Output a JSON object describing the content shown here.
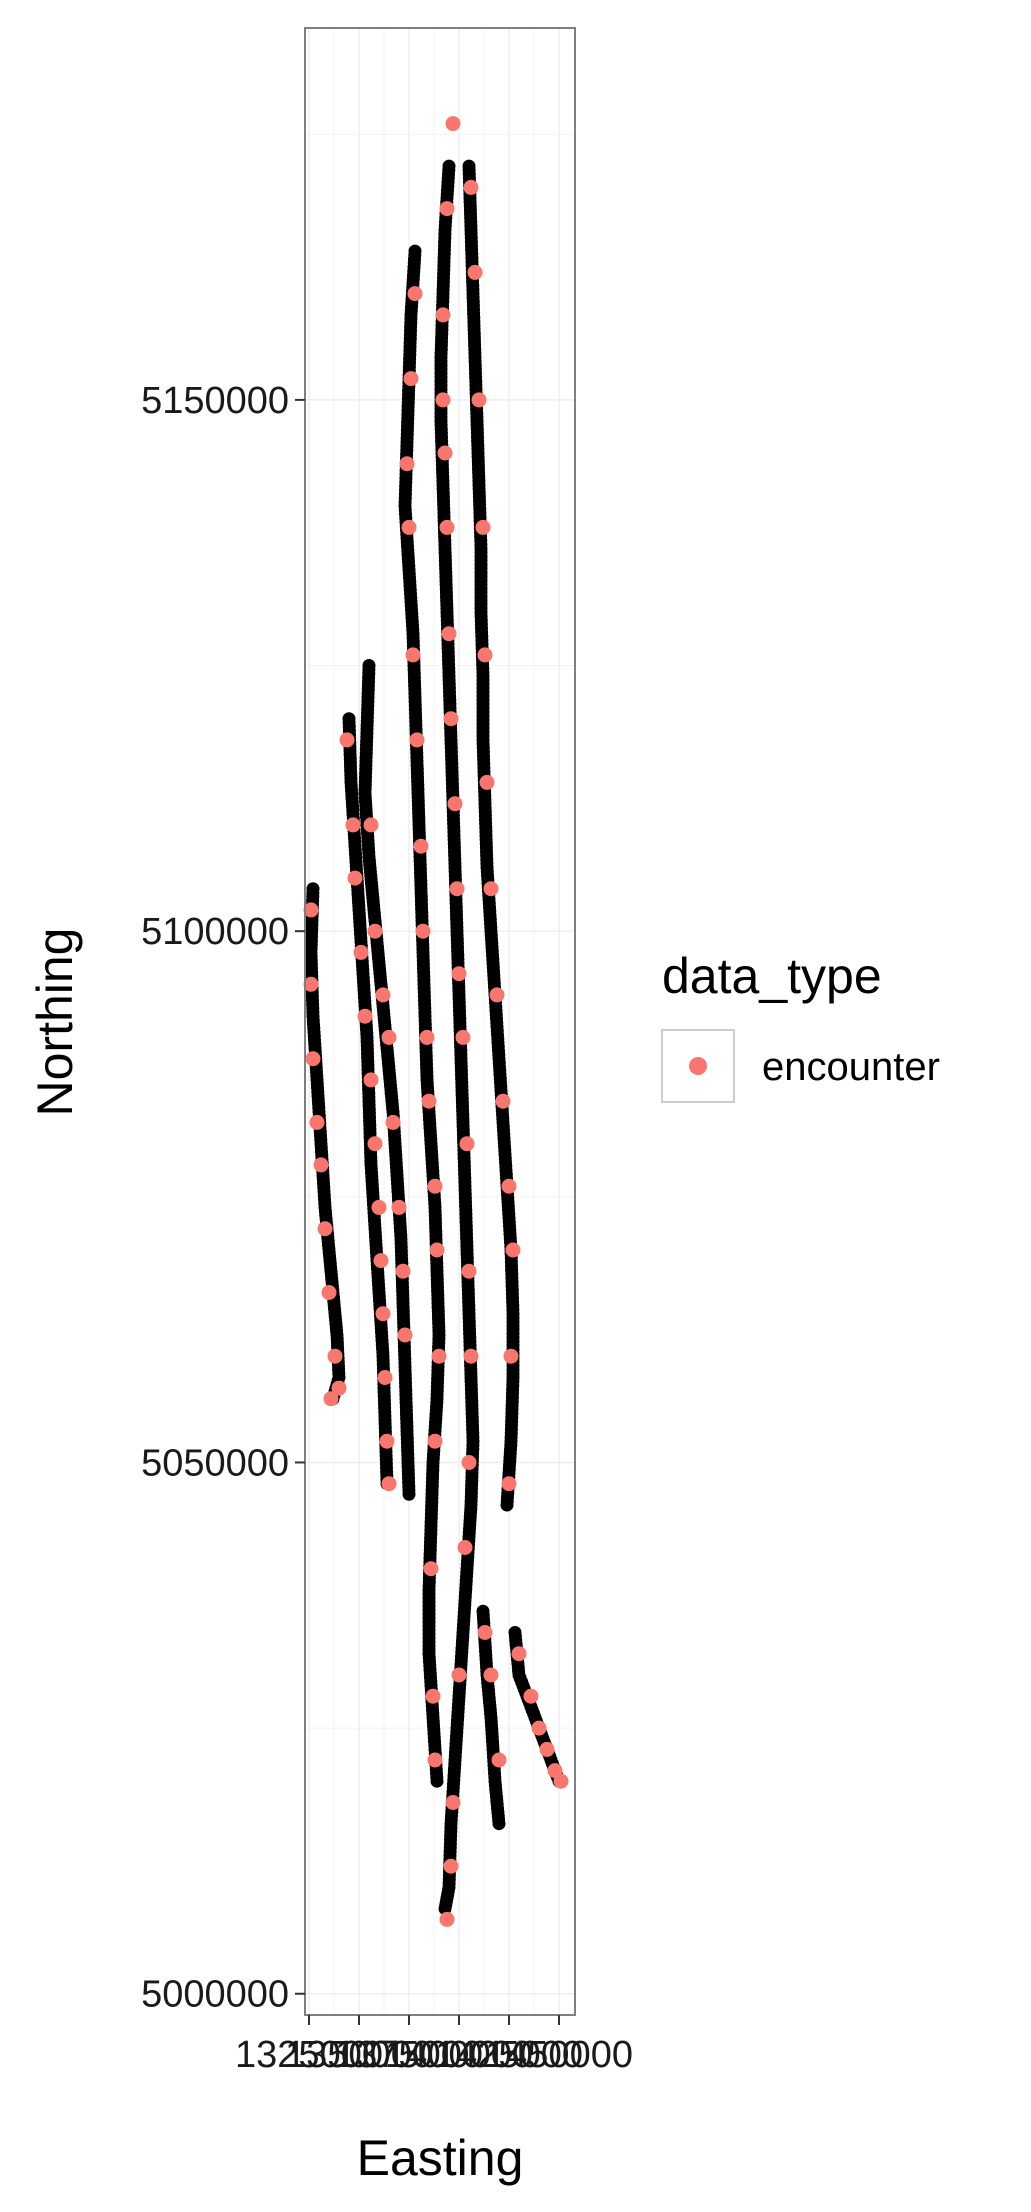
{
  "chart_data": {
    "type": "scatter",
    "xlabel": "Easting",
    "ylabel": "Northing",
    "x_ticks": [
      "1325000",
      "1350000",
      "1375000",
      "1400000",
      "1425000",
      "1450000"
    ],
    "y_ticks": [
      "5000000",
      "5050000",
      "5100000",
      "5150000"
    ],
    "xlim": [
      1323000,
      1458000
    ],
    "ylim": [
      4998000,
      5185000
    ],
    "grid": true,
    "legend": {
      "title": "data_type",
      "position": "right",
      "entries": [
        {
          "name": "encounter",
          "color": "#F8766D"
        }
      ]
    },
    "colors": {
      "encounter": "#F8766D",
      "track": "#000000",
      "panel_border": "#7f7f7f",
      "grid": "#ebebeb"
    },
    "series": [
      {
        "name": "track",
        "points": [
          [
            1327000,
            5104000
          ],
          [
            1326000,
            5098000
          ],
          [
            1327000,
            5092000
          ],
          [
            1329000,
            5086000
          ],
          [
            1331000,
            5080000
          ],
          [
            1333000,
            5074000
          ],
          [
            1336000,
            5068000
          ],
          [
            1339000,
            5062000
          ],
          [
            1340000,
            5058000
          ],
          [
            1337000,
            5056000
          ],
          [
            1345000,
            5120000
          ],
          [
            1346000,
            5114000
          ],
          [
            1348000,
            5108000
          ],
          [
            1350000,
            5102000
          ],
          [
            1352000,
            5096000
          ],
          [
            1354000,
            5090000
          ],
          [
            1355000,
            5084000
          ],
          [
            1356000,
            5078000
          ],
          [
            1358000,
            5072000
          ],
          [
            1360000,
            5066000
          ],
          [
            1362000,
            5060000
          ],
          [
            1363000,
            5054000
          ],
          [
            1364000,
            5048000
          ],
          [
            1355000,
            5125000
          ],
          [
            1354000,
            5119000
          ],
          [
            1353000,
            5113000
          ],
          [
            1355000,
            5107000
          ],
          [
            1358000,
            5101000
          ],
          [
            1361000,
            5095000
          ],
          [
            1364000,
            5089000
          ],
          [
            1367000,
            5083000
          ],
          [
            1369000,
            5077000
          ],
          [
            1371000,
            5071000
          ],
          [
            1372000,
            5065000
          ],
          [
            1373000,
            5059000
          ],
          [
            1374000,
            5053000
          ],
          [
            1375000,
            5047000
          ],
          [
            1378000,
            5164000
          ],
          [
            1376000,
            5158000
          ],
          [
            1375000,
            5152000
          ],
          [
            1374000,
            5146000
          ],
          [
            1373000,
            5140000
          ],
          [
            1375000,
            5134000
          ],
          [
            1377000,
            5128000
          ],
          [
            1378000,
            5122000
          ],
          [
            1379000,
            5116000
          ],
          [
            1380000,
            5110000
          ],
          [
            1381000,
            5104000
          ],
          [
            1382000,
            5098000
          ],
          [
            1383000,
            5092000
          ],
          [
            1384000,
            5086000
          ],
          [
            1386000,
            5080000
          ],
          [
            1388000,
            5074000
          ],
          [
            1389000,
            5068000
          ],
          [
            1390000,
            5062000
          ],
          [
            1389000,
            5056000
          ],
          [
            1387000,
            5050000
          ],
          [
            1386000,
            5044000
          ],
          [
            1385000,
            5038000
          ],
          [
            1385000,
            5032000
          ],
          [
            1387000,
            5026000
          ],
          [
            1389000,
            5020000
          ],
          [
            1395000,
            5172000
          ],
          [
            1393000,
            5166000
          ],
          [
            1392000,
            5160000
          ],
          [
            1391000,
            5154000
          ],
          [
            1391000,
            5148000
          ],
          [
            1392000,
            5142000
          ],
          [
            1393000,
            5136000
          ],
          [
            1394000,
            5130000
          ],
          [
            1395000,
            5124000
          ],
          [
            1396000,
            5118000
          ],
          [
            1397000,
            5112000
          ],
          [
            1398000,
            5106000
          ],
          [
            1399000,
            5100000
          ],
          [
            1400000,
            5094000
          ],
          [
            1401000,
            5088000
          ],
          [
            1402000,
            5082000
          ],
          [
            1403000,
            5076000
          ],
          [
            1404000,
            5070000
          ],
          [
            1405000,
            5064000
          ],
          [
            1406000,
            5058000
          ],
          [
            1407000,
            5052000
          ],
          [
            1406000,
            5046000
          ],
          [
            1404000,
            5040000
          ],
          [
            1402000,
            5034000
          ],
          [
            1400000,
            5028000
          ],
          [
            1398000,
            5022000
          ],
          [
            1396000,
            5016000
          ],
          [
            1395000,
            5010000
          ],
          [
            1393000,
            5008000
          ],
          [
            1405000,
            5172000
          ],
          [
            1406000,
            5166000
          ],
          [
            1407000,
            5160000
          ],
          [
            1408000,
            5154000
          ],
          [
            1409000,
            5148000
          ],
          [
            1410000,
            5142000
          ],
          [
            1411000,
            5136000
          ],
          [
            1411000,
            5130000
          ],
          [
            1412000,
            5124000
          ],
          [
            1412000,
            5118000
          ],
          [
            1413000,
            5112000
          ],
          [
            1414000,
            5106000
          ],
          [
            1416000,
            5100000
          ],
          [
            1418000,
            5094000
          ],
          [
            1420000,
            5088000
          ],
          [
            1422000,
            5082000
          ],
          [
            1424000,
            5076000
          ],
          [
            1426000,
            5070000
          ],
          [
            1427000,
            5064000
          ],
          [
            1427000,
            5058000
          ],
          [
            1426000,
            5052000
          ],
          [
            1424000,
            5046000
          ],
          [
            1412000,
            5036000
          ],
          [
            1414000,
            5030000
          ],
          [
            1416000,
            5026000
          ],
          [
            1418000,
            5020000
          ],
          [
            1420000,
            5016000
          ],
          [
            1428000,
            5034000
          ],
          [
            1430000,
            5030000
          ],
          [
            1434000,
            5028000
          ],
          [
            1438000,
            5026000
          ],
          [
            1442000,
            5024000
          ],
          [
            1446000,
            5022000
          ],
          [
            1450000,
            5020000
          ]
        ]
      },
      {
        "name": "encounter",
        "points": [
          [
            1326000,
            5102000
          ],
          [
            1326000,
            5095000
          ],
          [
            1327000,
            5088000
          ],
          [
            1329000,
            5082000
          ],
          [
            1331000,
            5078000
          ],
          [
            1333000,
            5072000
          ],
          [
            1335000,
            5066000
          ],
          [
            1338000,
            5060000
          ],
          [
            1340000,
            5057000
          ],
          [
            1336000,
            5056000
          ],
          [
            1344000,
            5118000
          ],
          [
            1347000,
            5110000
          ],
          [
            1348000,
            5105000
          ],
          [
            1351000,
            5098000
          ],
          [
            1353000,
            5092000
          ],
          [
            1356000,
            5086000
          ],
          [
            1358000,
            5080000
          ],
          [
            1360000,
            5074000
          ],
          [
            1361000,
            5069000
          ],
          [
            1362000,
            5064000
          ],
          [
            1363000,
            5058000
          ],
          [
            1364000,
            5052000
          ],
          [
            1365000,
            5048000
          ],
          [
            1356000,
            5110000
          ],
          [
            1358000,
            5100000
          ],
          [
            1362000,
            5094000
          ],
          [
            1365000,
            5090000
          ],
          [
            1367000,
            5082000
          ],
          [
            1370000,
            5074000
          ],
          [
            1372000,
            5068000
          ],
          [
            1373000,
            5062000
          ],
          [
            1378000,
            5160000
          ],
          [
            1376000,
            5152000
          ],
          [
            1374000,
            5144000
          ],
          [
            1375000,
            5138000
          ],
          [
            1377000,
            5126000
          ],
          [
            1379000,
            5118000
          ],
          [
            1381000,
            5108000
          ],
          [
            1382000,
            5100000
          ],
          [
            1384000,
            5090000
          ],
          [
            1385000,
            5084000
          ],
          [
            1388000,
            5076000
          ],
          [
            1389000,
            5070000
          ],
          [
            1390000,
            5060000
          ],
          [
            1388000,
            5052000
          ],
          [
            1386000,
            5040000
          ],
          [
            1387000,
            5028000
          ],
          [
            1388000,
            5022000
          ],
          [
            1397000,
            5176000
          ],
          [
            1394000,
            5168000
          ],
          [
            1392000,
            5158000
          ],
          [
            1392000,
            5150000
          ],
          [
            1393000,
            5145000
          ],
          [
            1394000,
            5138000
          ],
          [
            1395000,
            5128000
          ],
          [
            1396000,
            5120000
          ],
          [
            1398000,
            5112000
          ],
          [
            1399000,
            5104000
          ],
          [
            1400000,
            5096000
          ],
          [
            1402000,
            5090000
          ],
          [
            1404000,
            5080000
          ],
          [
            1405000,
            5068000
          ],
          [
            1406000,
            5060000
          ],
          [
            1405000,
            5050000
          ],
          [
            1403000,
            5042000
          ],
          [
            1400000,
            5030000
          ],
          [
            1397000,
            5018000
          ],
          [
            1396000,
            5012000
          ],
          [
            1394000,
            5007000
          ],
          [
            1406000,
            5170000
          ],
          [
            1408000,
            5162000
          ],
          [
            1410000,
            5150000
          ],
          [
            1412000,
            5138000
          ],
          [
            1413000,
            5126000
          ],
          [
            1414000,
            5114000
          ],
          [
            1416000,
            5104000
          ],
          [
            1419000,
            5094000
          ],
          [
            1422000,
            5084000
          ],
          [
            1425000,
            5076000
          ],
          [
            1427000,
            5070000
          ],
          [
            1426000,
            5060000
          ],
          [
            1425000,
            5048000
          ],
          [
            1413000,
            5034000
          ],
          [
            1416000,
            5030000
          ],
          [
            1420000,
            5022000
          ],
          [
            1430000,
            5032000
          ],
          [
            1436000,
            5028000
          ],
          [
            1440000,
            5025000
          ],
          [
            1444000,
            5023000
          ],
          [
            1448000,
            5021000
          ],
          [
            1451000,
            5020000
          ]
        ]
      }
    ]
  }
}
